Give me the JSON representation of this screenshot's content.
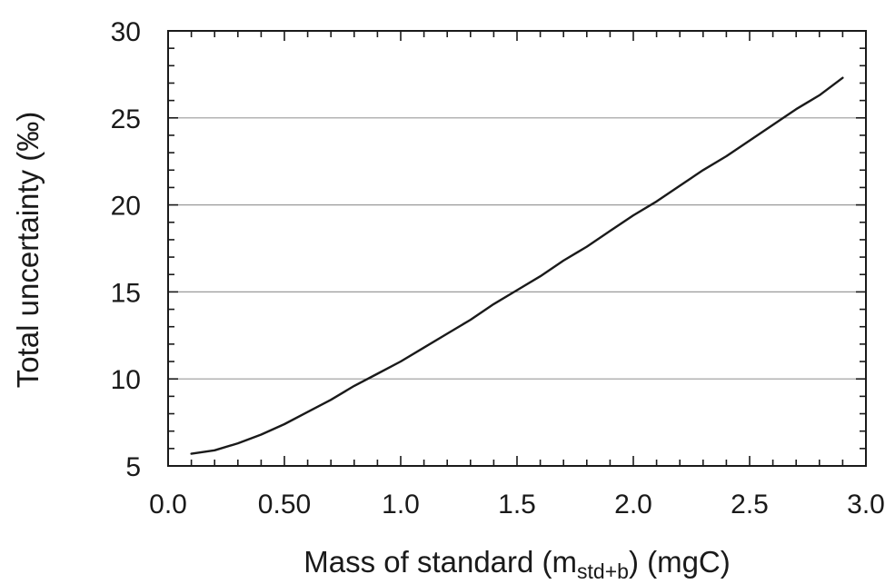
{
  "chart_data": {
    "type": "line",
    "title": "",
    "xlabel": {
      "main": "Mass of standard (m",
      "subscript": "std+b",
      "suffix": ") (mgC)"
    },
    "ylabel": "Total uncertainty (‰)",
    "xlim": [
      0.0,
      3.0
    ],
    "ylim": [
      5,
      30
    ],
    "x_ticks": [
      {
        "value": 0.0,
        "label": "0.0"
      },
      {
        "value": 0.5,
        "label": "0.50"
      },
      {
        "value": 1.0,
        "label": "1.0"
      },
      {
        "value": 1.5,
        "label": "1.5"
      },
      {
        "value": 2.0,
        "label": "2.0"
      },
      {
        "value": 2.5,
        "label": "2.5"
      },
      {
        "value": 3.0,
        "label": "3.0"
      }
    ],
    "x_minor_step": 0.1,
    "y_ticks": [
      {
        "value": 5,
        "label": "5"
      },
      {
        "value": 10,
        "label": "10"
      },
      {
        "value": 15,
        "label": "15"
      },
      {
        "value": 20,
        "label": "20"
      },
      {
        "value": 25,
        "label": "25"
      },
      {
        "value": 30,
        "label": "30"
      }
    ],
    "y_minor_step": 1,
    "grid": {
      "horizontal": true,
      "vertical": false
    },
    "series": [
      {
        "color": "#1a1a1a",
        "x": [
          0.1,
          0.2,
          0.3,
          0.4,
          0.5,
          0.6,
          0.7,
          0.8,
          0.9,
          1.0,
          1.1,
          1.2,
          1.3,
          1.4,
          1.5,
          1.6,
          1.7,
          1.8,
          1.9,
          2.0,
          2.1,
          2.2,
          2.3,
          2.4,
          2.5,
          2.6,
          2.7,
          2.8,
          2.9
        ],
        "y": [
          5.7,
          5.9,
          6.3,
          6.8,
          7.4,
          8.1,
          8.8,
          9.6,
          10.3,
          11.0,
          11.8,
          12.6,
          13.4,
          14.3,
          15.1,
          15.9,
          16.8,
          17.6,
          18.5,
          19.4,
          20.2,
          21.1,
          22.0,
          22.8,
          23.7,
          24.6,
          25.5,
          26.3,
          27.3
        ]
      }
    ]
  }
}
